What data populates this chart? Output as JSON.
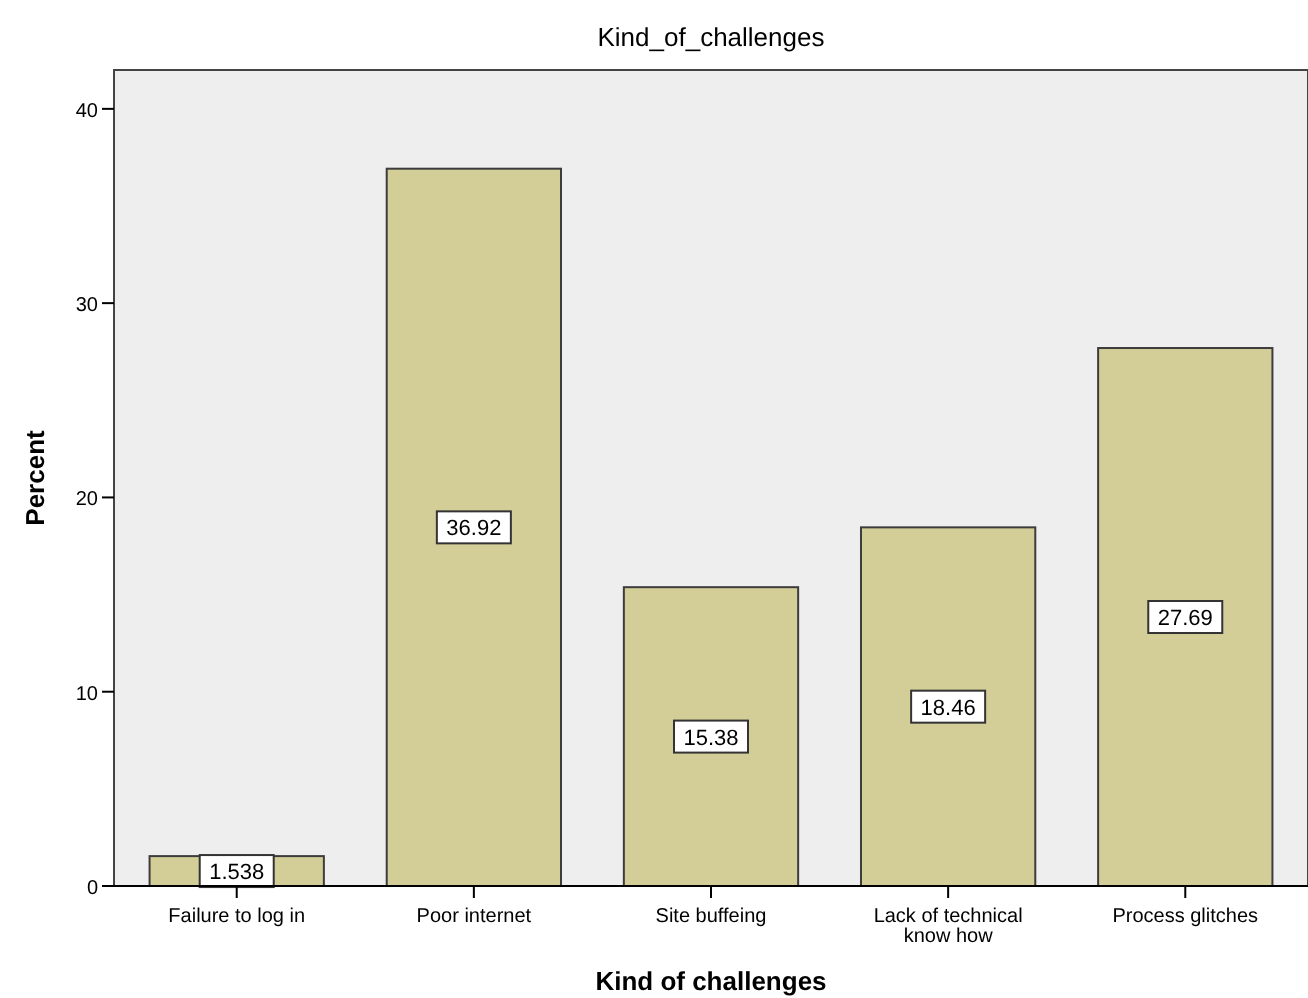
{
  "chart_data": {
    "type": "bar",
    "title": "Kind_of_challenges",
    "xlabel": "Kind of challenges",
    "ylabel": "Percent",
    "categories": [
      "Failure to log in",
      "Poor internet",
      "Site buffeing",
      "Lack of technical know how",
      "Process glitches"
    ],
    "values": [
      1.538,
      36.92,
      15.38,
      18.46,
      27.69
    ],
    "color": "#d3ce97",
    "value_labels": [
      "1.538",
      "36.92",
      "15.38",
      "18.46",
      "27.69"
    ],
    "ylim": [
      0,
      42
    ],
    "yticks": [
      0,
      10,
      20,
      30,
      40
    ],
    "grid": false
  }
}
